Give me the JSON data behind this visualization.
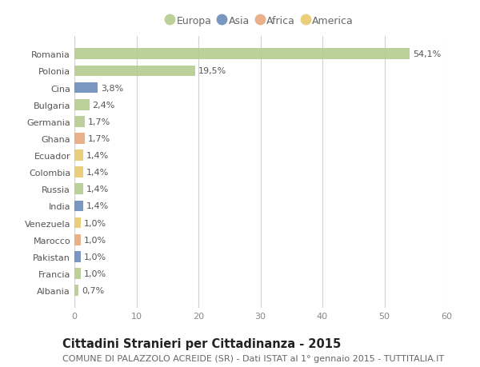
{
  "countries": [
    "Romania",
    "Polonia",
    "Cina",
    "Bulgaria",
    "Germania",
    "Ghana",
    "Ecuador",
    "Colombia",
    "Russia",
    "India",
    "Venezuela",
    "Marocco",
    "Pakistan",
    "Francia",
    "Albania"
  ],
  "values": [
    54.1,
    19.5,
    3.8,
    2.4,
    1.7,
    1.7,
    1.4,
    1.4,
    1.4,
    1.4,
    1.0,
    1.0,
    1.0,
    1.0,
    0.7
  ],
  "labels": [
    "54,1%",
    "19,5%",
    "3,8%",
    "2,4%",
    "1,7%",
    "1,7%",
    "1,4%",
    "1,4%",
    "1,4%",
    "1,4%",
    "1,0%",
    "1,0%",
    "1,0%",
    "1,0%",
    "0,7%"
  ],
  "colors": [
    "#b5cc8e",
    "#b5cc8e",
    "#6b8cba",
    "#b5cc8e",
    "#b5cc8e",
    "#e8a87c",
    "#e8c96b",
    "#e8c96b",
    "#b5cc8e",
    "#6b8cba",
    "#e8c96b",
    "#e8a87c",
    "#6b8cba",
    "#b5cc8e",
    "#b5cc8e"
  ],
  "legend_labels": [
    "Europa",
    "Asia",
    "Africa",
    "America"
  ],
  "legend_colors": [
    "#b5cc8e",
    "#6b8cba",
    "#e8a87c",
    "#e8c96b"
  ],
  "xlim": [
    0,
    60
  ],
  "xticks": [
    0,
    10,
    20,
    30,
    40,
    50,
    60
  ],
  "title": "Cittadini Stranieri per Cittadinanza - 2015",
  "subtitle": "COMUNE DI PALAZZOLO ACREIDE (SR) - Dati ISTAT al 1° gennaio 2015 - TUTTITALIA.IT",
  "bg_color": "#ffffff",
  "grid_color": "#d0d0d0",
  "bar_height": 0.65,
  "title_fontsize": 10.5,
  "subtitle_fontsize": 8,
  "label_fontsize": 8,
  "tick_fontsize": 8,
  "legend_fontsize": 9
}
